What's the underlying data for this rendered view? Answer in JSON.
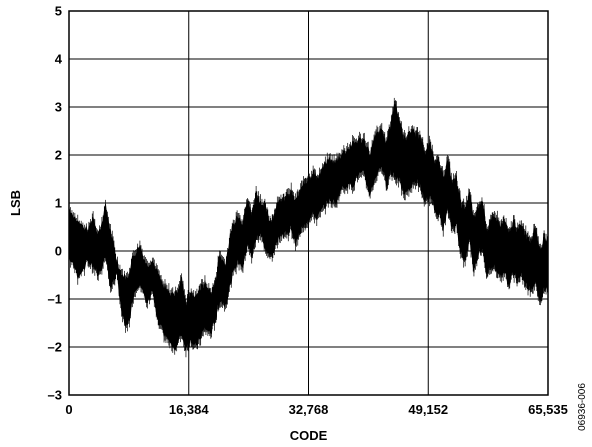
{
  "chart_data": {
    "type": "line",
    "title": "",
    "xlabel": "CODE",
    "ylabel": "LSB",
    "xlim": [
      0,
      65535
    ],
    "ylim": [
      -3,
      5
    ],
    "x_ticks": [
      0,
      16384,
      32768,
      49152,
      65535
    ],
    "x_tick_labels": [
      "0",
      "16,384",
      "32,768",
      "49,152",
      "65,535"
    ],
    "y_ticks": [
      -3,
      -2,
      -1,
      0,
      1,
      2,
      3,
      4,
      5
    ],
    "y_tick_labels": [
      "–3",
      "–2",
      "–1",
      "0",
      "1",
      "2",
      "3",
      "4",
      "5"
    ],
    "grid": true,
    "line_color": "#000000",
    "series": [
      {
        "x": [
          0,
          1200,
          2600,
          3300,
          4000,
          5000,
          5800,
          6500,
          7200,
          8000,
          8800,
          9700,
          10600,
          11400,
          12200,
          13000,
          13800,
          14600,
          15400,
          16000,
          16600,
          17300,
          17900,
          18600,
          19400,
          20000,
          20600,
          21400,
          22200,
          23000,
          23800,
          24400,
          25000,
          25600,
          26200,
          26800,
          27400,
          28000,
          28600,
          29200,
          29800,
          30400,
          31000,
          31600,
          32200,
          32800,
          33400,
          34000,
          34800,
          35600,
          36400,
          37200,
          38000,
          38800,
          39600,
          40400,
          41200,
          42000,
          42800,
          43400,
          44000,
          44600,
          45200,
          45800,
          46400,
          47000,
          47600,
          48200,
          48800,
          49400,
          50000,
          50600,
          51200,
          51800,
          52400,
          53000,
          53600,
          54200,
          54800,
          55400,
          56000,
          56600,
          57200,
          57800,
          58400,
          59000,
          59600,
          60200,
          60800,
          61400,
          62000,
          62600,
          63200,
          63800,
          64400,
          65000,
          65535
        ],
        "y_min": [
          -0.1,
          -0.5,
          -0.2,
          -0.3,
          -0.5,
          -0.1,
          -0.8,
          -0.4,
          -1.3,
          -1.6,
          -0.9,
          -0.6,
          -1.1,
          -0.8,
          -1.5,
          -1.7,
          -1.9,
          -2.0,
          -1.7,
          -2.0,
          -1.8,
          -2.0,
          -1.8,
          -1.6,
          -1.7,
          -1.4,
          -1.0,
          -1.1,
          -0.6,
          -0.2,
          -0.3,
          0.2,
          -0.1,
          0.3,
          0.4,
          0.1,
          -0.1,
          0.0,
          0.3,
          0.4,
          0.4,
          0.5,
          0.2,
          0.4,
          0.6,
          0.7,
          0.8,
          0.7,
          0.9,
          1.1,
          1.0,
          1.3,
          1.4,
          1.4,
          1.6,
          1.6,
          1.2,
          1.6,
          1.8,
          1.4,
          1.7,
          1.6,
          1.5,
          1.2,
          1.3,
          1.4,
          1.5,
          1.3,
          1.0,
          1.2,
          0.9,
          0.8,
          0.5,
          0.9,
          0.5,
          0.6,
          0.0,
          -0.2,
          0.3,
          -0.4,
          0.0,
          0.1,
          -0.5,
          -0.3,
          -0.3,
          -0.5,
          -0.4,
          -0.7,
          -0.4,
          -0.6,
          -0.5,
          -0.7,
          -0.8,
          -0.6,
          -1.0,
          -0.8,
          -0.7
        ],
        "y_max": [
          0.9,
          0.6,
          0.4,
          0.7,
          0.3,
          0.9,
          0.3,
          -0.2,
          -0.5,
          -0.6,
          -0.1,
          0.1,
          -0.3,
          -0.2,
          -0.5,
          -0.8,
          -0.9,
          -0.9,
          -0.6,
          -1.1,
          -0.9,
          -1.0,
          -0.8,
          -0.7,
          -0.9,
          -0.7,
          -0.1,
          -0.3,
          0.4,
          0.7,
          0.6,
          1.1,
          0.7,
          1.2,
          1.0,
          0.9,
          0.6,
          0.7,
          1.0,
          1.1,
          1.1,
          1.2,
          1.0,
          1.2,
          1.4,
          1.5,
          1.6,
          1.5,
          1.7,
          1.9,
          1.8,
          2.0,
          2.1,
          2.2,
          2.3,
          2.3,
          2.0,
          2.4,
          2.5,
          2.2,
          2.6,
          3.1,
          2.7,
          2.3,
          2.4,
          2.5,
          2.4,
          2.3,
          2.0,
          2.2,
          1.9,
          1.8,
          1.5,
          1.9,
          1.4,
          1.5,
          1.0,
          0.8,
          1.2,
          0.6,
          0.9,
          1.0,
          0.4,
          0.6,
          0.7,
          0.5,
          0.6,
          0.3,
          0.6,
          0.4,
          0.5,
          0.3,
          0.2,
          0.5,
          0.0,
          0.2,
          0.2
        ]
      }
    ]
  },
  "figure_id": "06936-006"
}
